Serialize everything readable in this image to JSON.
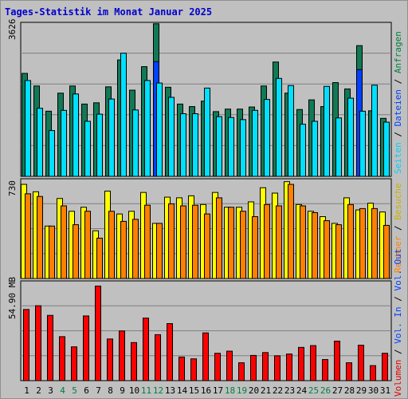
{
  "title": "Tages-Statistik im Monat Januar 2025",
  "chart_data": [
    {
      "type": "bar",
      "name": "top-panel",
      "ymax_label": "3626",
      "ylim": [
        0,
        3626
      ],
      "categories": [
        "1",
        "2",
        "3",
        "4",
        "5",
        "6",
        "7",
        "8",
        "9",
        "10",
        "11",
        "12",
        "13",
        "14",
        "15",
        "16",
        "17",
        "18",
        "19",
        "20",
        "21",
        "22",
        "23",
        "24",
        "25",
        "26",
        "27",
        "28",
        "29",
        "30",
        "31"
      ],
      "weekend_days": [
        "4",
        "5",
        "11",
        "12",
        "18",
        "19",
        "25",
        "26"
      ],
      "legend": [
        {
          "name": "Anfragen",
          "color": "#008040"
        },
        {
          "name": "Dateien",
          "color": "#0040ff"
        },
        {
          "name": "Seiten",
          "color": "#00e0ff"
        }
      ],
      "series": [
        {
          "name": "Anfragen",
          "color": "#117a55",
          "values": [
            2450,
            2150,
            1550,
            1980,
            2150,
            1720,
            1750,
            2130,
            2770,
            2050,
            2610,
            3630,
            2120,
            1720,
            1660,
            1790,
            1540,
            1600,
            1600,
            1650,
            2150,
            2720,
            1980,
            1590,
            1820,
            1660,
            2230,
            2080,
            3110,
            1560,
            1380
          ]
        },
        {
          "name": "Dateien",
          "color": "#0040ff",
          "values": [
            0,
            0,
            0,
            0,
            0,
            0,
            0,
            0,
            0,
            0,
            0,
            2730,
            0,
            0,
            0,
            0,
            0,
            0,
            0,
            0,
            0,
            0,
            0,
            0,
            0,
            0,
            0,
            0,
            2540,
            0,
            0
          ]
        },
        {
          "name": "Seiten",
          "color": "#00e0ff",
          "values": [
            2280,
            1620,
            1090,
            1570,
            1960,
            1310,
            1480,
            1840,
            2930,
            1580,
            2280,
            2220,
            1880,
            1490,
            1490,
            2100,
            1420,
            1400,
            1350,
            1570,
            1830,
            2330,
            2160,
            1240,
            1310,
            2140,
            1390,
            1860,
            1550,
            2170,
            1290
          ]
        }
      ]
    },
    {
      "type": "bar",
      "name": "middle-panel",
      "ymax_label": "730",
      "ylim": [
        0,
        730
      ],
      "legend": [
        {
          "name": "Besuche",
          "color": "#e0c000"
        },
        {
          "name": "Rechner",
          "color": "#ff8000"
        }
      ],
      "series": [
        {
          "name": "Besuche",
          "color": "#ffff00",
          "values": [
            700,
            645,
            390,
            595,
            500,
            530,
            355,
            650,
            480,
            500,
            640,
            410,
            605,
            600,
            615,
            550,
            640,
            530,
            530,
            570,
            675,
            635,
            720,
            550,
            500,
            460,
            410,
            600,
            510,
            560,
            495
          ]
        },
        {
          "name": "Rechner",
          "color": "#ff8000",
          "values": [
            630,
            610,
            390,
            540,
            400,
            500,
            300,
            500,
            425,
            440,
            545,
            410,
            555,
            540,
            545,
            480,
            600,
            530,
            500,
            460,
            550,
            540,
            700,
            540,
            490,
            430,
            400,
            550,
            520,
            520,
            395
          ]
        }
      ]
    },
    {
      "type": "bar",
      "name": "bottom-panel",
      "ymax_label": "54.90 MB",
      "ylim": [
        0,
        54.9
      ],
      "legend": [
        {
          "name": "Volumen",
          "color": "#e00000"
        },
        {
          "name": "Vol. In",
          "color": "#0040ff"
        },
        {
          "name": "Vol. Out",
          "color": "#0040ff"
        }
      ],
      "series": [
        {
          "name": "Volumen",
          "color": "#ff0000",
          "values": [
            39.8,
            41.9,
            36.5,
            24.6,
            18.9,
            36.2,
            52.9,
            23.3,
            27.8,
            21.3,
            35.0,
            25.7,
            31.9,
            13.2,
            12.2,
            26.7,
            15.3,
            16.5,
            10.0,
            14.1,
            15.7,
            13.9,
            14.9,
            18.6,
            19.6,
            11.8,
            22.1,
            10.0,
            19.8,
            8.4,
            15.3
          ]
        }
      ]
    }
  ]
}
